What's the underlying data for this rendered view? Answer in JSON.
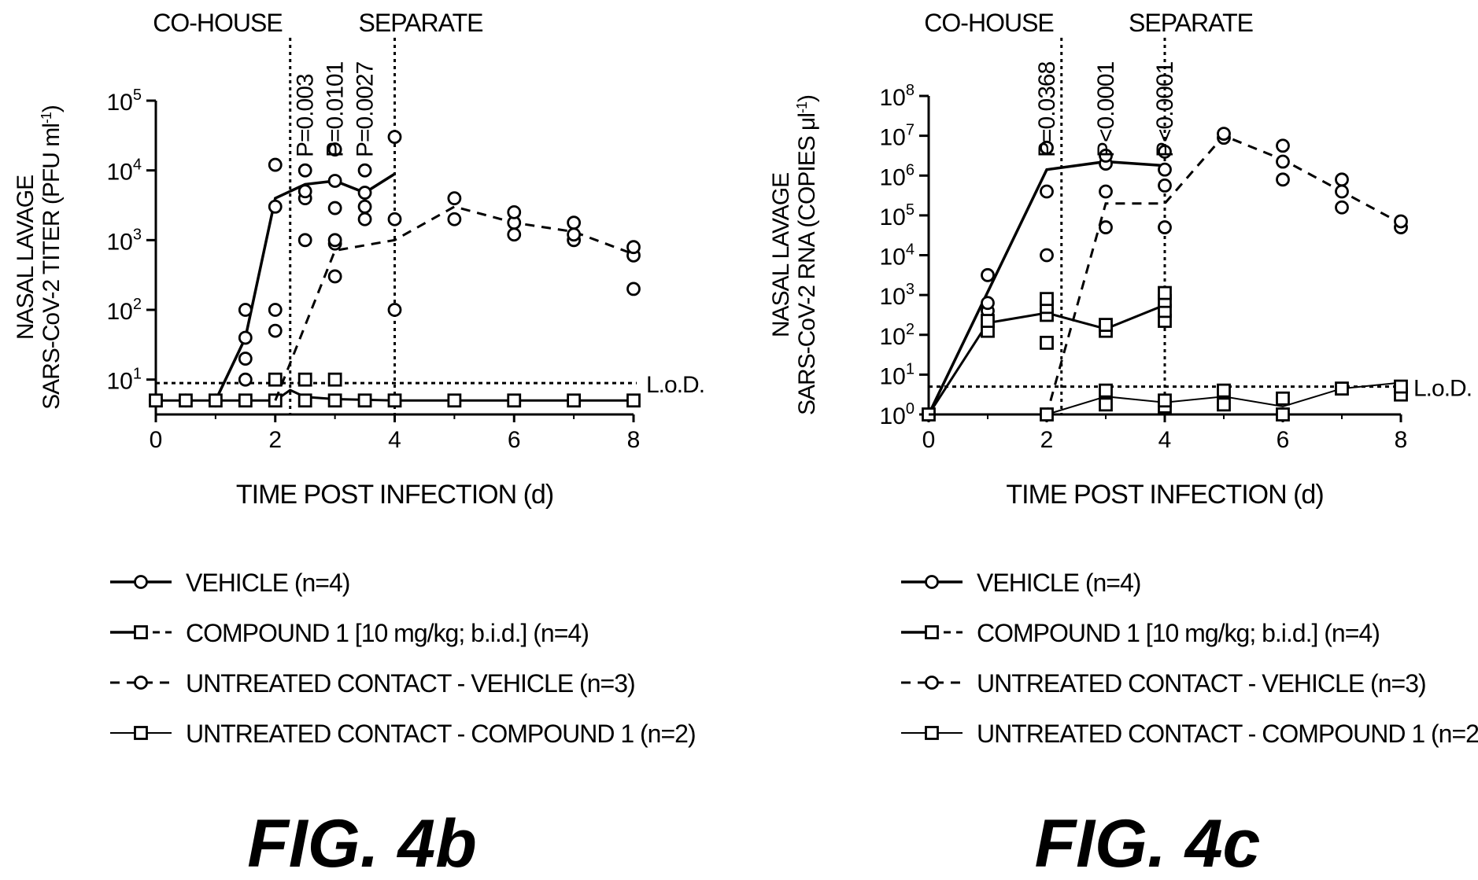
{
  "figures": [
    {
      "id": "4b",
      "fig_label": "FIG. 4b"
    },
    {
      "id": "4c",
      "fig_label": "FIG. 4c"
    }
  ],
  "legend_items": [
    {
      "label": "VEHICLE (n=4)",
      "marker": "circle",
      "line": "solid-thick"
    },
    {
      "label": "COMPOUND 1 [10 mg/kg; b.i.d.] (n=4)",
      "marker": "square",
      "line": "solid-then-dashed"
    },
    {
      "label": "UNTREATED CONTACT - VEHICLE (n=3)",
      "marker": "circle",
      "line": "dashed"
    },
    {
      "label": "UNTREATED CONTACT - COMPOUND 1 (n=2)",
      "marker": "square",
      "line": "solid-thin"
    }
  ],
  "chart_data": [
    {
      "type": "scatter",
      "figure": "FIG. 4b",
      "xlabel": "TIME POST INFECTION (d)",
      "ylabel_lines": [
        "NASAL LAVAGE",
        "SARS-CoV-2 TITER (PFU ml-1)"
      ],
      "ylabel_line2_parts": [
        "SARS-CoV-2 TITER (PFU ml",
        "-1",
        ")"
      ],
      "y_scale": "log10",
      "ylim": [
        0.5,
        5
      ],
      "xlim": [
        0,
        8
      ],
      "x_ticks": [
        0,
        2,
        4,
        6,
        8
      ],
      "y_tick_exponents": [
        1,
        2,
        3,
        4,
        5
      ],
      "lod": {
        "label": "L.o.D.",
        "value": 0.95
      },
      "vlines": [
        {
          "x": 2.25,
          "label": "CO-HOUSE",
          "label_side": "left"
        },
        {
          "x": 4,
          "label": "SEPARATE",
          "label_side": "left"
        }
      ],
      "p_values": [
        {
          "x": 2.5,
          "text": "P=0.003"
        },
        {
          "x": 3,
          "text": "P=0.0101"
        },
        {
          "x": 3.5,
          "text": "P=0.0027"
        }
      ],
      "series": [
        {
          "name": "VEHICLE (n=4)",
          "marker": "circle",
          "style": "solid-thick",
          "points": [
            [
              0,
              0.7
            ],
            [
              0.5,
              0.7
            ],
            [
              1,
              0.7
            ],
            [
              1.5,
              1.0
            ],
            [
              1.5,
              1.3
            ],
            [
              1.5,
              1.6
            ],
            [
              1.5,
              2.0
            ],
            [
              2,
              1.7
            ],
            [
              2,
              2.0
            ],
            [
              2,
              3.48
            ],
            [
              2,
              4.08
            ],
            [
              2.5,
              3.0
            ],
            [
              2.5,
              3.6
            ],
            [
              2.5,
              3.7
            ],
            [
              2.5,
              4.0
            ],
            [
              3,
              3.46
            ],
            [
              3,
              3.85
            ],
            [
              3,
              4.3
            ],
            [
              3.5,
              3.3
            ],
            [
              3.5,
              3.48
            ],
            [
              3.5,
              3.68
            ],
            [
              3.5,
              4.0
            ],
            [
              4,
              4.48
            ]
          ],
          "mean_line": [
            [
              1,
              0.7
            ],
            [
              1.5,
              1.6
            ],
            [
              2,
              3.6
            ],
            [
              2.5,
              3.8
            ],
            [
              3,
              3.85
            ],
            [
              3.5,
              3.68
            ],
            [
              4,
              3.95
            ]
          ]
        },
        {
          "name": "COMPOUND 1 [10 mg/kg; b.i.d.] (n=4)",
          "marker": "square",
          "style": "solid-then-dashed",
          "points": [
            [
              0,
              0.7
            ],
            [
              0.5,
              0.7
            ],
            [
              1,
              0.7
            ],
            [
              1.5,
              0.7
            ],
            [
              2,
              0.7
            ],
            [
              2,
              1.0
            ],
            [
              2.5,
              0.7
            ],
            [
              2.5,
              1.0
            ],
            [
              3,
              0.7
            ],
            [
              3,
              1.0
            ],
            [
              3.5,
              0.7
            ],
            [
              4,
              0.7
            ],
            [
              5,
              0.7
            ],
            [
              6,
              0.7
            ],
            [
              7,
              0.7
            ],
            [
              8,
              0.7
            ]
          ],
          "mean_line": [
            [
              0,
              0.7
            ],
            [
              1,
              0.7
            ],
            [
              2,
              0.7
            ],
            [
              2.25,
              0.85
            ],
            [
              2.5,
              0.75
            ],
            [
              3,
              0.72
            ],
            [
              4,
              0.7
            ],
            [
              5,
              0.7
            ],
            [
              6,
              0.7
            ],
            [
              7,
              0.7
            ],
            [
              8,
              0.7
            ]
          ]
        },
        {
          "name": "UNTREATED CONTACT - VEHICLE (n=3)",
          "marker": "circle",
          "style": "dashed",
          "points": [
            [
              3,
              2.48
            ],
            [
              3,
              2.95
            ],
            [
              3,
              3.0
            ],
            [
              4,
              2.0
            ],
            [
              4,
              3.3
            ],
            [
              5,
              3.3
            ],
            [
              5,
              3.6
            ],
            [
              6,
              3.08
            ],
            [
              6,
              3.25
            ],
            [
              6,
              3.4
            ],
            [
              7,
              3.0
            ],
            [
              7,
              3.08
            ],
            [
              7,
              3.25
            ],
            [
              8,
              2.3
            ],
            [
              8,
              2.78
            ],
            [
              8,
              2.9
            ]
          ],
          "mean_line": [
            [
              2,
              0.7
            ],
            [
              3,
              2.85
            ],
            [
              4,
              3.0
            ],
            [
              5,
              3.48
            ],
            [
              6,
              3.25
            ],
            [
              7,
              3.12
            ],
            [
              8,
              2.8
            ]
          ]
        },
        {
          "name": "UNTREATED CONTACT - COMPOUND 1 (n=2)",
          "marker": "square",
          "style": "solid-thin",
          "points": [],
          "mean_line": []
        }
      ]
    },
    {
      "type": "scatter",
      "figure": "FIG. 4c",
      "xlabel": "TIME POST INFECTION (d)",
      "ylabel_lines": [
        "NASAL LAVAGE",
        "SARS-CoV-2 RNA (COPIES μl-1)"
      ],
      "ylabel_line2_parts": [
        "SARS-CoV-2 RNA (COPIES μl",
        "-1",
        ")"
      ],
      "y_scale": "log10",
      "ylim": [
        0,
        8
      ],
      "xlim": [
        0,
        8
      ],
      "x_ticks": [
        0,
        2,
        4,
        6,
        8
      ],
      "y_tick_exponents": [
        0,
        1,
        2,
        3,
        4,
        5,
        6,
        7,
        8
      ],
      "lod": {
        "label": "L.o.D.",
        "value": 0.7
      },
      "vlines": [
        {
          "x": 2.25,
          "label": "CO-HOUSE",
          "label_side": "left"
        },
        {
          "x": 4,
          "label": "SEPARATE",
          "label_side": "left"
        }
      ],
      "p_values": [
        {
          "x": 2,
          "text": "P=0.0368"
        },
        {
          "x": 3,
          "text": "P<0.0001"
        },
        {
          "x": 4,
          "text": "P<0.0001"
        }
      ],
      "series": [
        {
          "name": "VEHICLE (n=4)",
          "marker": "circle",
          "style": "solid-thick",
          "points": [
            [
              0,
              0
            ],
            [
              1,
              2.6
            ],
            [
              1,
              2.8
            ],
            [
              1,
              3.5
            ],
            [
              2,
              4.0
            ],
            [
              2,
              5.6
            ],
            [
              2,
              6.7
            ],
            [
              3,
              4.7
            ],
            [
              3,
              5.6
            ],
            [
              3,
              6.3
            ],
            [
              3,
              6.5
            ],
            [
              4,
              4.7
            ],
            [
              4,
              5.75
            ],
            [
              4,
              6.15
            ],
            [
              4,
              6.6
            ]
          ],
          "mean_line": [
            [
              0,
              0
            ],
            [
              2,
              6.15
            ],
            [
              3,
              6.35
            ],
            [
              4,
              6.25
            ]
          ]
        },
        {
          "name": "COMPOUND 1 [10 mg/kg; b.i.d.] (n=4)",
          "marker": "square",
          "style": "solid-then-dashed",
          "points": [
            [
              0,
              0
            ],
            [
              1,
              2.1
            ],
            [
              1,
              2.35
            ],
            [
              2,
              1.8
            ],
            [
              2,
              2.5
            ],
            [
              2,
              2.7
            ],
            [
              2,
              2.9
            ],
            [
              3,
              2.1
            ],
            [
              3,
              2.25
            ],
            [
              4,
              2.35
            ],
            [
              4,
              2.6
            ],
            [
              4,
              2.85
            ],
            [
              4,
              3.05
            ]
          ],
          "mean_line": [
            [
              0,
              0
            ],
            [
              1,
              2.3
            ],
            [
              2,
              2.55
            ],
            [
              3,
              2.15
            ],
            [
              4,
              2.75
            ]
          ]
        },
        {
          "name": "UNTREATED CONTACT - VEHICLE (n=3)",
          "marker": "circle",
          "style": "dashed",
          "points": [
            [
              5,
              6.95
            ],
            [
              5,
              7.05
            ],
            [
              6,
              5.9
            ],
            [
              6,
              6.35
            ],
            [
              6,
              6.75
            ],
            [
              7,
              5.2
            ],
            [
              7,
              5.6
            ],
            [
              7,
              5.9
            ],
            [
              8,
              4.7
            ],
            [
              8,
              4.85
            ]
          ],
          "mean_line": [
            [
              0,
              0
            ],
            [
              2,
              0
            ],
            [
              3,
              5.3
            ],
            [
              4,
              5.3
            ],
            [
              5,
              7.0
            ],
            [
              6,
              6.4
            ],
            [
              7,
              5.6
            ],
            [
              8,
              4.8
            ]
          ]
        },
        {
          "name": "UNTREATED CONTACT - COMPOUND 1 (n=2)",
          "marker": "square",
          "style": "solid-thin",
          "points": [
            [
              2,
              0
            ],
            [
              3,
              0.25
            ],
            [
              3,
              0.6
            ],
            [
              4,
              0.2
            ],
            [
              4,
              0.35
            ],
            [
              5,
              0.25
            ],
            [
              5,
              0.6
            ],
            [
              6,
              0
            ],
            [
              6,
              0.4
            ],
            [
              7,
              0.65
            ],
            [
              8,
              0.5
            ],
            [
              8,
              0.7
            ]
          ],
          "mean_line": [
            [
              2,
              0
            ],
            [
              3,
              0.45
            ],
            [
              4,
              0.3
            ],
            [
              5,
              0.45
            ],
            [
              6,
              0.2
            ],
            [
              7,
              0.65
            ],
            [
              8,
              0.8
            ]
          ]
        }
      ]
    }
  ]
}
